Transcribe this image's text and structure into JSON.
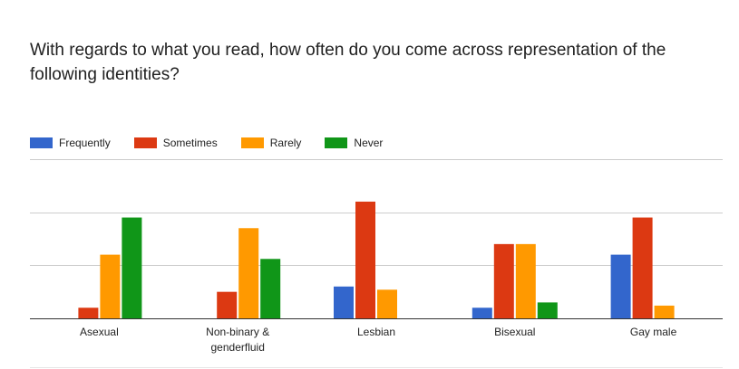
{
  "chart_data": {
    "type": "bar",
    "title": "With regards to what you read, how often do you come across representation of the following identities?",
    "categories": [
      [
        "Asexual"
      ],
      [
        "Non-binary &",
        "genderfluid"
      ],
      [
        "Lesbian"
      ],
      [
        "Bisexual"
      ],
      [
        "Gay male"
      ]
    ],
    "series": [
      {
        "name": "Frequently",
        "color": "#3366cc",
        "values": [
          0,
          0,
          3,
          1,
          6
        ]
      },
      {
        "name": "Sometimes",
        "color": "#dc3912",
        "values": [
          1,
          2.5,
          11,
          7,
          9.5
        ]
      },
      {
        "name": "Rarely",
        "color": "#ff9900",
        "values": [
          6,
          8.5,
          2.7,
          7,
          1.2
        ]
      },
      {
        "name": "Never",
        "color": "#109618",
        "values": [
          9.5,
          5.6,
          0,
          1.5,
          0
        ]
      }
    ],
    "ylim": [
      0,
      15
    ],
    "grid": true,
    "legend": "top"
  }
}
